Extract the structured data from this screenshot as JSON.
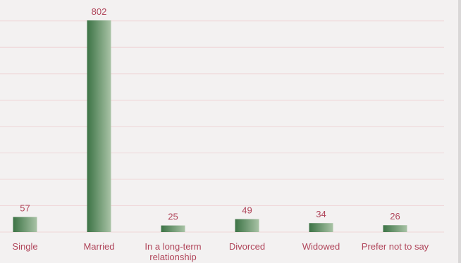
{
  "chart_data": {
    "type": "bar",
    "categories": [
      "Single",
      "Married",
      "In a long-term relationship",
      "Divorced",
      "Widowed",
      "Prefer not to say"
    ],
    "category_lines": [
      [
        "Single"
      ],
      [
        "Married"
      ],
      [
        "In a long-term",
        "relationship"
      ],
      [
        "Divorced"
      ],
      [
        "Widowed"
      ],
      [
        "Prefer not to say"
      ]
    ],
    "values": [
      57,
      802,
      25,
      49,
      34,
      26
    ],
    "value_labels": [
      "57",
      "802",
      "25",
      "49",
      "34",
      "26"
    ],
    "ylim": [
      0,
      900
    ],
    "grid": true,
    "data_labels": true,
    "colors": {
      "bar_dark": "#3c7345",
      "bar_light": "#a9c3a6",
      "label": "#b0455a",
      "grid": "#efd6d8",
      "background": "#f3f1f1"
    }
  }
}
